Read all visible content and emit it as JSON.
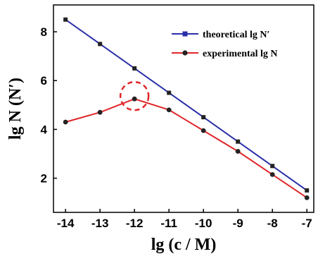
{
  "chart_data": {
    "type": "line",
    "xlabel": "lg (c / M)",
    "ylabel": "lg N (N′)",
    "x": [
      -14,
      -13,
      -12,
      -11,
      -10,
      -9,
      -8,
      -7
    ],
    "xlim": [
      -14.35,
      -6.8
    ],
    "ylim": [
      0.6,
      9.1
    ],
    "xticks": [
      "-14",
      "-13",
      "-12",
      "-11",
      "-10",
      "-9",
      "-8",
      "-7"
    ],
    "yticks": [
      "2",
      "4",
      "6",
      "8"
    ],
    "grid": false,
    "legend_position": "top-right",
    "series": [
      {
        "name": "theoretical lg N′",
        "values": [
          8.5,
          7.5,
          6.5,
          5.5,
          4.5,
          3.5,
          2.5,
          1.5
        ],
        "color": "#2a2fa8",
        "marker": "square"
      },
      {
        "name": "experimental lg N",
        "values": [
          4.3,
          4.7,
          5.25,
          4.8,
          3.95,
          3.1,
          2.15,
          1.2
        ],
        "color": "#e0262a",
        "marker": "circle"
      }
    ],
    "annotations": [
      {
        "type": "dashed-circle",
        "x": -12,
        "y": 5.25,
        "color": "#e0262a"
      }
    ]
  }
}
